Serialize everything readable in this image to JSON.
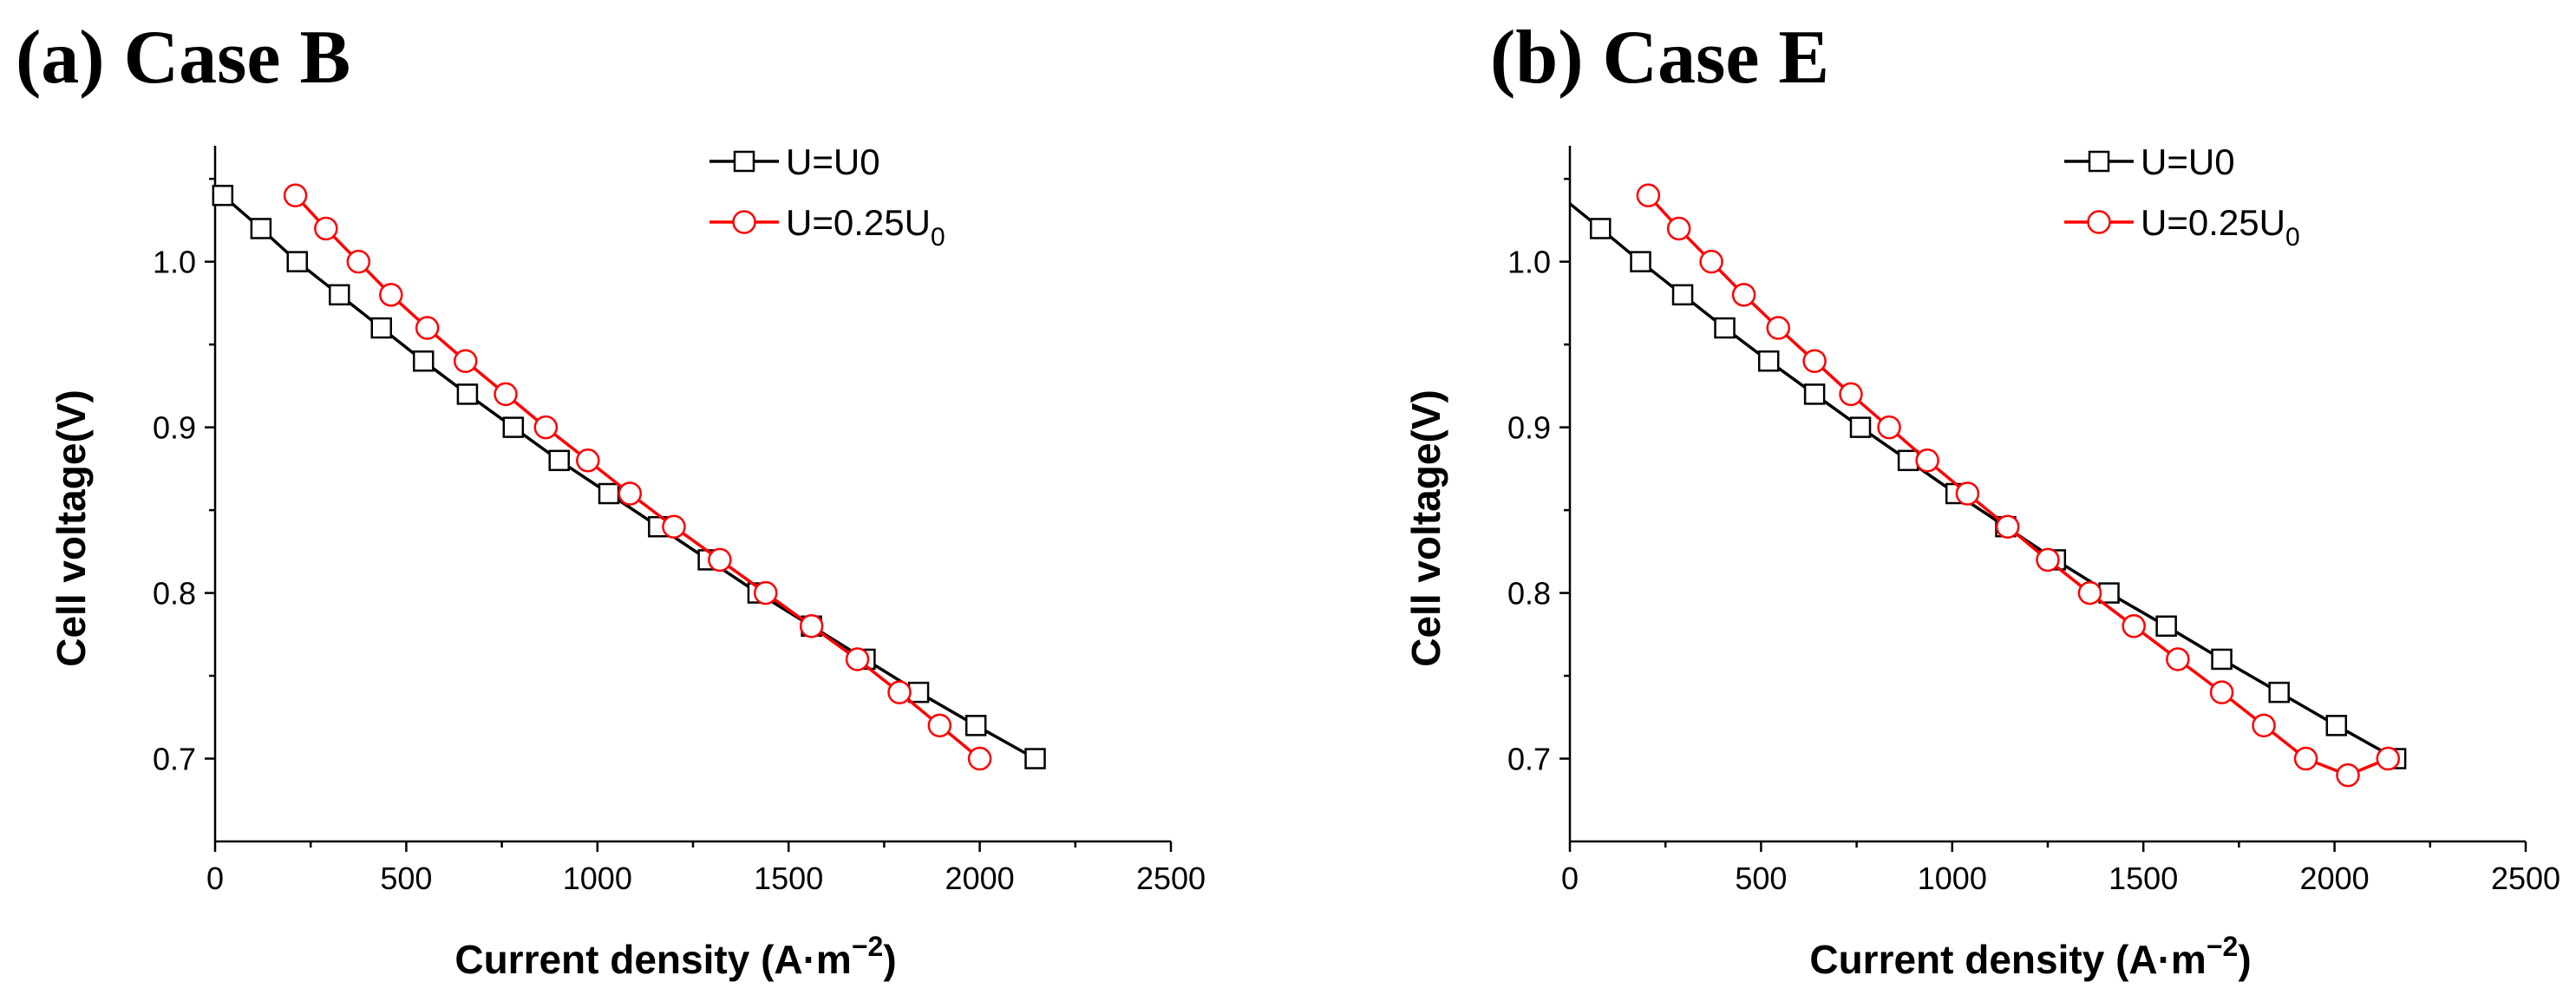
{
  "chart_data": [
    {
      "type": "line",
      "title": "(a) Case B",
      "xlabel": {
        "main": "Current density (A·m",
        "sup": "−2",
        "close": ")"
      },
      "ylabel": "Cell voltage(V)",
      "xlim": [
        0,
        2500
      ],
      "ylim": [
        0.65,
        1.07
      ],
      "xticks": [
        0,
        500,
        1000,
        1500,
        2000,
        2500
      ],
      "xtick_labels": [
        "0",
        "500",
        "1000",
        "1500",
        "2000",
        "2500"
      ],
      "yticks": [
        0.7,
        0.8,
        0.9,
        1.0
      ],
      "ytick_labels": [
        "0.7",
        "0.8",
        "0.9",
        "1.0"
      ],
      "legend_position": "top-right",
      "series": [
        {
          "name": "U=U0",
          "legend": {
            "main": "U=U0",
            "sub": ""
          },
          "color": "#000000",
          "marker": "square",
          "x": [
            20,
            120,
            215,
            325,
            435,
            545,
            660,
            780,
            900,
            1030,
            1160,
            1290,
            1420,
            1560,
            1700,
            1840,
            1990,
            2145
          ],
          "y": [
            1.04,
            1.02,
            1.0,
            0.98,
            0.96,
            0.94,
            0.92,
            0.9,
            0.88,
            0.86,
            0.84,
            0.82,
            0.8,
            0.78,
            0.76,
            0.74,
            0.72,
            0.7
          ]
        },
        {
          "name": "U=0.25U0",
          "legend": {
            "main": "U=0.25U",
            "sub": "0"
          },
          "color": "#ff0000",
          "marker": "circle",
          "x": [
            210,
            290,
            375,
            460,
            555,
            655,
            760,
            865,
            975,
            1085,
            1200,
            1320,
            1440,
            1560,
            1680,
            1790,
            1895,
            2000
          ],
          "y": [
            1.04,
            1.02,
            1.0,
            0.98,
            0.96,
            0.94,
            0.92,
            0.9,
            0.88,
            0.86,
            0.84,
            0.82,
            0.8,
            0.78,
            0.76,
            0.74,
            0.72,
            0.7
          ]
        }
      ]
    },
    {
      "type": "line",
      "title": "(b) Case E",
      "xlabel": {
        "main": "Current density (A·m",
        "sup": "−2",
        "close": ")"
      },
      "ylabel": "Cell voltage(V)",
      "xlim": [
        0,
        2500
      ],
      "ylim": [
        0.65,
        1.07
      ],
      "xticks": [
        0,
        500,
        1000,
        1500,
        2000,
        2500
      ],
      "xtick_labels": [
        "0",
        "500",
        "1000",
        "1500",
        "2000",
        "2500"
      ],
      "yticks": [
        0.7,
        0.8,
        0.9,
        1.0
      ],
      "ytick_labels": [
        "0.7",
        "0.8",
        "0.9",
        "1.0"
      ],
      "legend_position": "top-right",
      "series": [
        {
          "name": "U=U0",
          "legend": {
            "main": "U=U0",
            "sub": ""
          },
          "color": "#000000",
          "marker": "square",
          "line_start": [
            0,
            1.035
          ],
          "x": [
            80,
            185,
            295,
            405,
            520,
            640,
            760,
            885,
            1010,
            1140,
            1270,
            1410,
            1560,
            1705,
            1855,
            2005,
            2160
          ],
          "y": [
            1.02,
            1.0,
            0.98,
            0.96,
            0.94,
            0.92,
            0.9,
            0.88,
            0.86,
            0.84,
            0.82,
            0.8,
            0.78,
            0.76,
            0.74,
            0.72,
            0.7
          ]
        },
        {
          "name": "U=0.25U0",
          "legend": {
            "main": "U=0.25U",
            "sub": "0"
          },
          "color": "#ff0000",
          "marker": "circle",
          "x": [
            205,
            285,
            370,
            455,
            545,
            640,
            735,
            835,
            935,
            1040,
            1145,
            1250,
            1360,
            1475,
            1590,
            1705,
            1815,
            1925,
            2035,
            2140
          ],
          "y": [
            1.04,
            1.02,
            1.0,
            0.98,
            0.96,
            0.94,
            0.92,
            0.9,
            0.88,
            0.86,
            0.84,
            0.82,
            0.8,
            0.78,
            0.76,
            0.74,
            0.72,
            0.7,
            0.69,
            0.7
          ]
        }
      ]
    }
  ]
}
